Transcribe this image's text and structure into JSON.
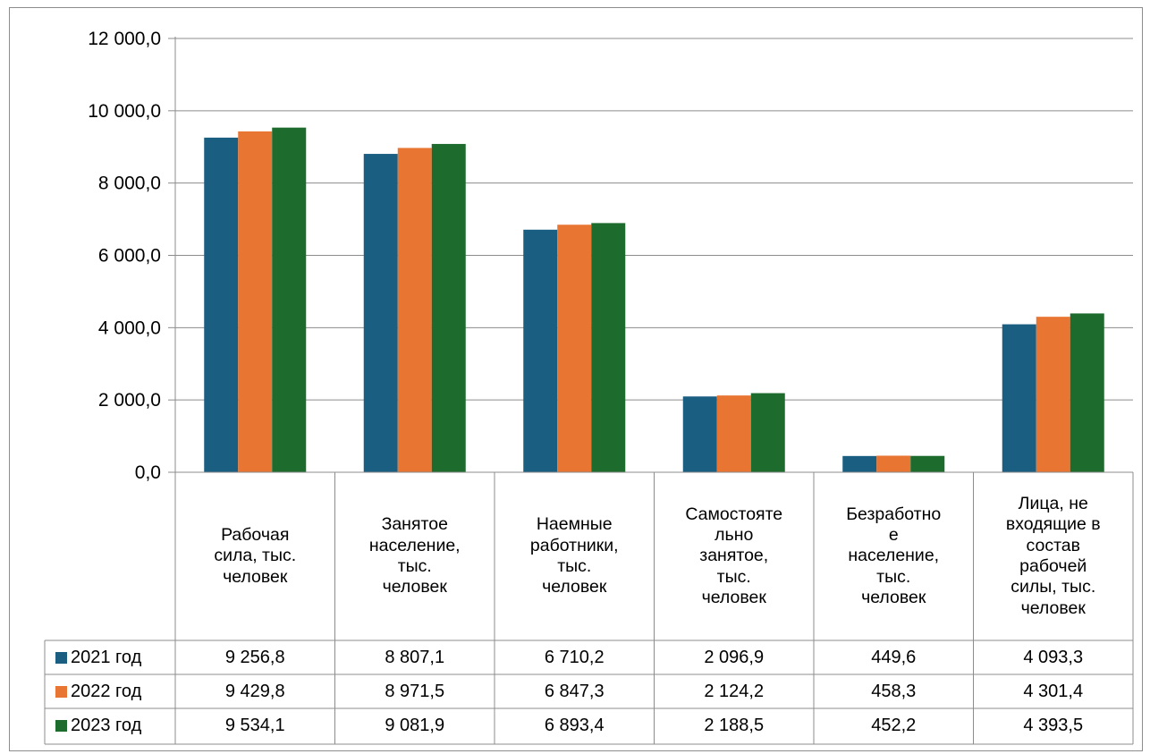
{
  "chart_data": {
    "type": "bar",
    "ylim": [
      0,
      12000
    ],
    "y_ticks": [
      "0,0",
      "2 000,0",
      "4 000,0",
      "6 000,0",
      "8 000,0",
      "10 000,0",
      "12 000,0"
    ],
    "y_tick_values": [
      0,
      2000,
      4000,
      6000,
      8000,
      10000,
      12000
    ],
    "grid": true,
    "legend_placement": "data table (left column)",
    "categories": [
      "Рабочая сила, тыс. человек",
      "Занятое население, тыс. человек",
      "Наемные работники, тыс. человек",
      "Самостоятельно занятое, тыс. человек",
      "Безработное население, тыс. человек",
      "Лица, не входящие в состав рабочей силы, тыс. человек"
    ],
    "category_label_lines": [
      [
        "Рабочая",
        "сила, тыс.",
        "человек"
      ],
      [
        "Занятое",
        "население,",
        "тыс.",
        "человек"
      ],
      [
        "Наемные",
        "работники,",
        "тыс.",
        "человек"
      ],
      [
        "Самостояте",
        "льно",
        "занятое,",
        "тыс.",
        "человек"
      ],
      [
        "Безработно",
        "е",
        "население,",
        "тыс.",
        "человек"
      ],
      [
        "Лица, не",
        "входящие в",
        "состав",
        "рабочей",
        "силы, тыс.",
        "человек"
      ]
    ],
    "series": [
      {
        "name": "2021 год",
        "color": "#1a5e82",
        "values": [
          9256.8,
          8807.1,
          6710.2,
          2096.9,
          449.6,
          4093.3
        ],
        "labels": [
          "9 256,8",
          "8 807,1",
          "6 710,2",
          "2 096,9",
          "449,6",
          "4 093,3"
        ]
      },
      {
        "name": "2022 год",
        "color": "#e87532",
        "values": [
          9429.8,
          8971.5,
          6847.3,
          2124.2,
          458.3,
          4301.4
        ],
        "labels": [
          "9 429,8",
          "8 971,5",
          "6 847,3",
          "2 124,2",
          "458,3",
          "4 301,4"
        ]
      },
      {
        "name": "2023 год",
        "color": "#1e6b2e",
        "values": [
          9534.1,
          9081.9,
          6893.4,
          2188.5,
          452.2,
          4393.5
        ],
        "labels": [
          "9 534,1",
          "9 081,9",
          "6 893,4",
          "2 188,5",
          "452,2",
          "4 393,5"
        ]
      }
    ]
  }
}
